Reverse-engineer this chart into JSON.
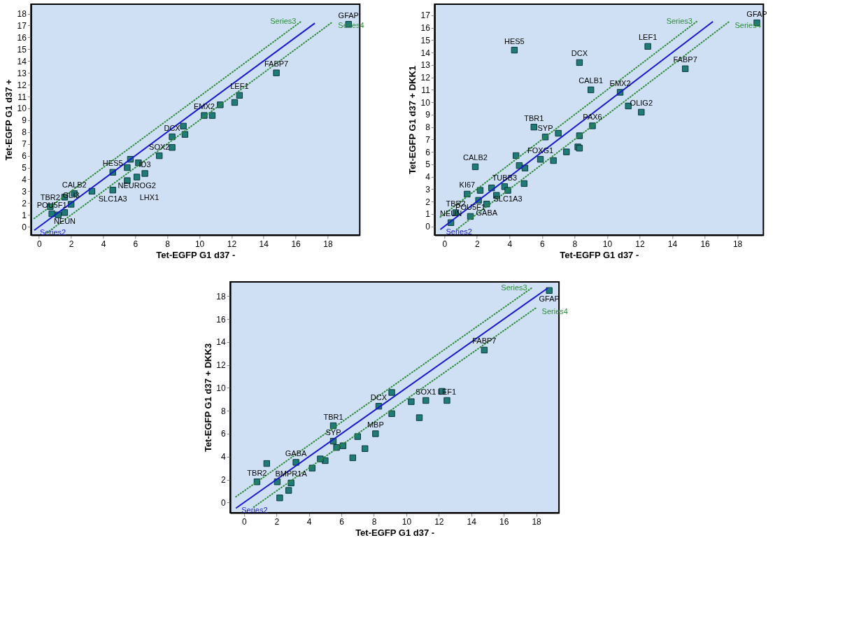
{
  "chart_data": [
    {
      "type": "scatter",
      "xlabel": "Tet-EGFP G1 d37 -",
      "ylabel": "Tet-EGFP G1 d37 +",
      "xlim": [
        -0.5,
        20
      ],
      "ylim": [
        -0.7,
        18.8
      ],
      "xticks": [
        0,
        2,
        4,
        6,
        8,
        10,
        12,
        14,
        16,
        18
      ],
      "yticks": [
        0,
        1,
        2,
        3,
        4,
        5,
        6,
        7,
        8,
        9,
        10,
        11,
        12,
        13,
        14,
        15,
        16,
        17,
        18
      ],
      "grid": false,
      "legend": false,
      "series": [
        {
          "type": "scatter",
          "marker": "square",
          "color": "#1f7a78",
          "x": [
            19.3,
            14.8,
            12.5,
            12.2,
            11.3,
            10.8,
            10.3,
            9.0,
            9.1,
            8.3,
            8.3,
            7.5,
            5.7,
            6.2,
            5.5,
            5.5,
            6.6,
            6.1,
            4.6,
            3.3,
            4.6,
            2.2,
            1.6,
            2.0,
            0.7,
            1.6,
            0.8,
            1.2
          ],
          "values": [
            17.1,
            13.0,
            11.1,
            10.5,
            10.3,
            9.4,
            9.4,
            8.5,
            7.8,
            7.6,
            6.7,
            6.0,
            5.7,
            5.4,
            5.0,
            3.9,
            4.5,
            4.2,
            4.6,
            3.0,
            3.1,
            2.8,
            2.5,
            1.9,
            1.7,
            1.2,
            1.1,
            1.0
          ]
        },
        {
          "name": "Series2",
          "type": "line",
          "marker": "none",
          "line_style": "solid",
          "color": "#1a1acc",
          "x": [
            -0.3,
            17.2
          ],
          "values": [
            -0.3,
            17.2
          ]
        },
        {
          "name": "Series3",
          "type": "line",
          "marker": "none",
          "line_style": "dotted",
          "color": "#2e8b3a",
          "x": [
            -0.3,
            16.3
          ],
          "values": [
            0.7,
            17.3
          ]
        },
        {
          "name": "Series4",
          "type": "line",
          "marker": "none",
          "line_style": "dotted",
          "color": "#2e8b3a",
          "x": [
            0.5,
            18.3
          ],
          "values": [
            -0.5,
            17.3
          ]
        }
      ],
      "annotations": [
        {
          "text": "GFAP",
          "x": 19.3,
          "y": 17.1
        },
        {
          "text": "FABP7",
          "x": 14.8,
          "y": 13.0
        },
        {
          "text": "LEF1",
          "x": 12.5,
          "y": 11.1
        },
        {
          "text": "EMX2",
          "x": 10.3,
          "y": 9.4
        },
        {
          "text": "DCX",
          "x": 8.3,
          "y": 7.6
        },
        {
          "text": "SOX2",
          "x": 7.5,
          "y": 6.0
        },
        {
          "text": "HES5",
          "x": 4.6,
          "y": 4.6
        },
        {
          "text": "ID3",
          "x": 6.6,
          "y": 4.5
        },
        {
          "text": "NEUROG2",
          "x": 6.1,
          "y": 4.2
        },
        {
          "text": "SLC1A3",
          "x": 4.6,
          "y": 3.1
        },
        {
          "text": "CALB2",
          "x": 2.2,
          "y": 2.8
        },
        {
          "text": "GLI3",
          "x": 2.0,
          "y": 1.9
        },
        {
          "text": "TBR2",
          "x": 0.7,
          "y": 1.7
        },
        "LHX1",
        {
          "text": "NEUN",
          "x": 1.6,
          "y": 1.2
        },
        {
          "text": "POU5F1",
          "x": 0.8,
          "y": 1.1
        }
      ]
    },
    {
      "type": "scatter",
      "xlabel": "Tet-EGFP G1 d37 -",
      "ylabel": "Tet-EGFP G1 d37 + DKK1",
      "xlim": [
        -0.6,
        19.6
      ],
      "ylim": [
        -0.7,
        17.9
      ],
      "xticks": [
        0,
        2,
        4,
        6,
        8,
        10,
        12,
        14,
        16,
        18
      ],
      "yticks": [
        0,
        1,
        2,
        3,
        4,
        5,
        6,
        7,
        8,
        9,
        10,
        11,
        12,
        13,
        14,
        15,
        16,
        17
      ],
      "grid": false,
      "legend": false,
      "series": [
        {
          "type": "scatter",
          "marker": "square",
          "color": "#1f7a78",
          "x": [
            19.2,
            12.5,
            14.8,
            4.3,
            8.3,
            9.0,
            10.8,
            11.3,
            12.1,
            9.1,
            8.3,
            7.0,
            5.5,
            6.2,
            8.2,
            8.3,
            7.5,
            5.9,
            6.7,
            4.4,
            4.6,
            4.95,
            1.9,
            4.9,
            3.7,
            2.9,
            2.2,
            1.4,
            2.1,
            3.2,
            2.6,
            3.9,
            0.7,
            0.4,
            1.6
          ],
          "values": [
            16.4,
            14.5,
            12.7,
            14.2,
            13.2,
            11.0,
            10.8,
            9.7,
            9.2,
            8.1,
            7.3,
            7.5,
            8.0,
            7.2,
            6.4,
            6.3,
            6.0,
            5.4,
            5.3,
            5.7,
            4.9,
            4.7,
            4.8,
            3.45,
            3.2,
            3.1,
            2.9,
            2.6,
            2.1,
            2.5,
            1.8,
            2.9,
            1.1,
            0.3,
            0.8
          ]
        },
        {
          "name": "Series2",
          "type": "line",
          "marker": "none",
          "line_style": "solid",
          "color": "#1a1acc",
          "x": [
            -0.25,
            16.5
          ],
          "values": [
            -0.25,
            16.5
          ]
        },
        {
          "name": "Series3",
          "type": "line",
          "marker": "none",
          "line_style": "dotted",
          "color": "#2e8b3a",
          "x": [
            -0.25,
            15.5
          ],
          "values": [
            0.75,
            16.5
          ]
        },
        {
          "name": "Series4",
          "type": "line",
          "marker": "none",
          "line_style": "dotted",
          "color": "#2e8b3a",
          "x": [
            0.75,
            17.5
          ],
          "values": [
            -0.25,
            16.5
          ]
        }
      ],
      "annotations": [
        {
          "text": "GFAP",
          "x": 19.2,
          "y": 16.4
        },
        {
          "text": "LEF1",
          "x": 12.5,
          "y": 14.5
        },
        {
          "text": "FABP7",
          "x": 14.8,
          "y": 12.7
        },
        {
          "text": "HES5",
          "x": 4.3,
          "y": 14.2
        },
        {
          "text": "DCX",
          "x": 8.3,
          "y": 13.2
        },
        {
          "text": "CALB1",
          "x": 9.0,
          "y": 11.0
        },
        {
          "text": "EMX2",
          "x": 10.8,
          "y": 10.8
        },
        {
          "text": "OLIG2",
          "x": 12.1,
          "y": 9.2
        },
        {
          "text": "PAX6",
          "x": 9.1,
          "y": 8.1
        },
        {
          "text": "TBR1",
          "x": 5.5,
          "y": 8.0
        },
        {
          "text": "SYP",
          "x": 6.2,
          "y": 7.2
        },
        {
          "text": "FOXG1",
          "x": 5.9,
          "y": 5.4
        },
        {
          "text": "CALB2",
          "x": 1.9,
          "y": 4.8
        },
        {
          "text": "TUBB3",
          "x": 3.7,
          "y": 3.2
        },
        {
          "text": "KI67",
          "x": 1.4,
          "y": 2.6
        },
        {
          "text": "SLC1A3",
          "x": 3.9,
          "y": 2.9
        },
        {
          "text": "GABA",
          "x": 2.6,
          "y": 1.8
        },
        {
          "text": "TBR2",
          "x": 0.7,
          "y": 1.1
        },
        {
          "text": "NEUN",
          "x": 0.4,
          "y": 0.3
        },
        {
          "text": "POU5F1",
          "x": 1.6,
          "y": 0.8
        }
      ]
    },
    {
      "type": "scatter",
      "xlabel": "Tet-EGFP G1 d37 -",
      "ylabel": "Tet-EGFP G1 d37 + DKK3",
      "xlim": [
        -0.85,
        19.4
      ],
      "ylim": [
        -0.9,
        19.25
      ],
      "xticks": [
        0,
        2,
        4,
        6,
        8,
        10,
        12,
        14,
        16,
        18
      ],
      "yticks": [
        0,
        2,
        4,
        6,
        8,
        10,
        12,
        14,
        16,
        18
      ],
      "grid": false,
      "legend": false,
      "series": [
        {
          "type": "scatter",
          "marker": "square",
          "color": "#1f7a78",
          "x": [
            18.8,
            14.8,
            10.3,
            11.2,
            12.2,
            12.5,
            10.8,
            8.3,
            9.1,
            9.1,
            8.1,
            7.0,
            7.45,
            6.7,
            5.5,
            5.5,
            6.1,
            5.7,
            5.0,
            4.7,
            3.2,
            4.2,
            2.9,
            2.75,
            2.2,
            2.05,
            0.8,
            1.4
          ],
          "values": [
            18.5,
            13.3,
            8.8,
            8.9,
            9.7,
            8.9,
            7.4,
            8.4,
            9.6,
            7.75,
            6.0,
            5.75,
            4.7,
            3.9,
            6.7,
            5.35,
            4.95,
            4.8,
            3.65,
            3.8,
            3.5,
            3.0,
            1.7,
            1.05,
            0.4,
            1.8,
            1.8,
            3.4
          ]
        },
        {
          "name": "Series2",
          "type": "line",
          "marker": "none",
          "line_style": "solid",
          "color": "#1a1acc",
          "x": [
            -0.5,
            18.7
          ],
          "values": [
            -0.5,
            18.7
          ]
        },
        {
          "name": "Series3",
          "type": "line",
          "marker": "none",
          "line_style": "dotted",
          "color": "#2e8b3a",
          "x": [
            -0.5,
            17.7
          ],
          "values": [
            0.5,
            18.7
          ]
        },
        {
          "name": "Series4",
          "type": "line",
          "marker": "none",
          "line_style": "dotted",
          "color": "#2e8b3a",
          "x": [
            0.6,
            18.0
          ],
          "values": [
            -0.4,
            17.0
          ]
        }
      ],
      "annotations": [
        {
          "text": "GFAP",
          "x": 18.8,
          "y": 18.5
        },
        {
          "text": "FABP7",
          "x": 14.8,
          "y": 13.3
        },
        {
          "text": "SOX1",
          "x": 11.2,
          "y": 8.9
        },
        {
          "text": "LEF1",
          "x": 12.5,
          "y": 8.9
        },
        {
          "text": "DCX",
          "x": 8.3,
          "y": 8.4
        },
        {
          "text": "MBP",
          "x": 8.1,
          "y": 6.0
        },
        {
          "text": "TBR1",
          "x": 5.5,
          "y": 6.7
        },
        {
          "text": "SYP",
          "x": 5.5,
          "y": 5.35
        },
        {
          "text": "GABA",
          "x": 3.2,
          "y": 3.5
        },
        {
          "text": "BMPR1A",
          "x": 2.9,
          "y": 1.7
        },
        {
          "text": "TBR2",
          "x": 0.8,
          "y": 1.8
        }
      ]
    }
  ]
}
